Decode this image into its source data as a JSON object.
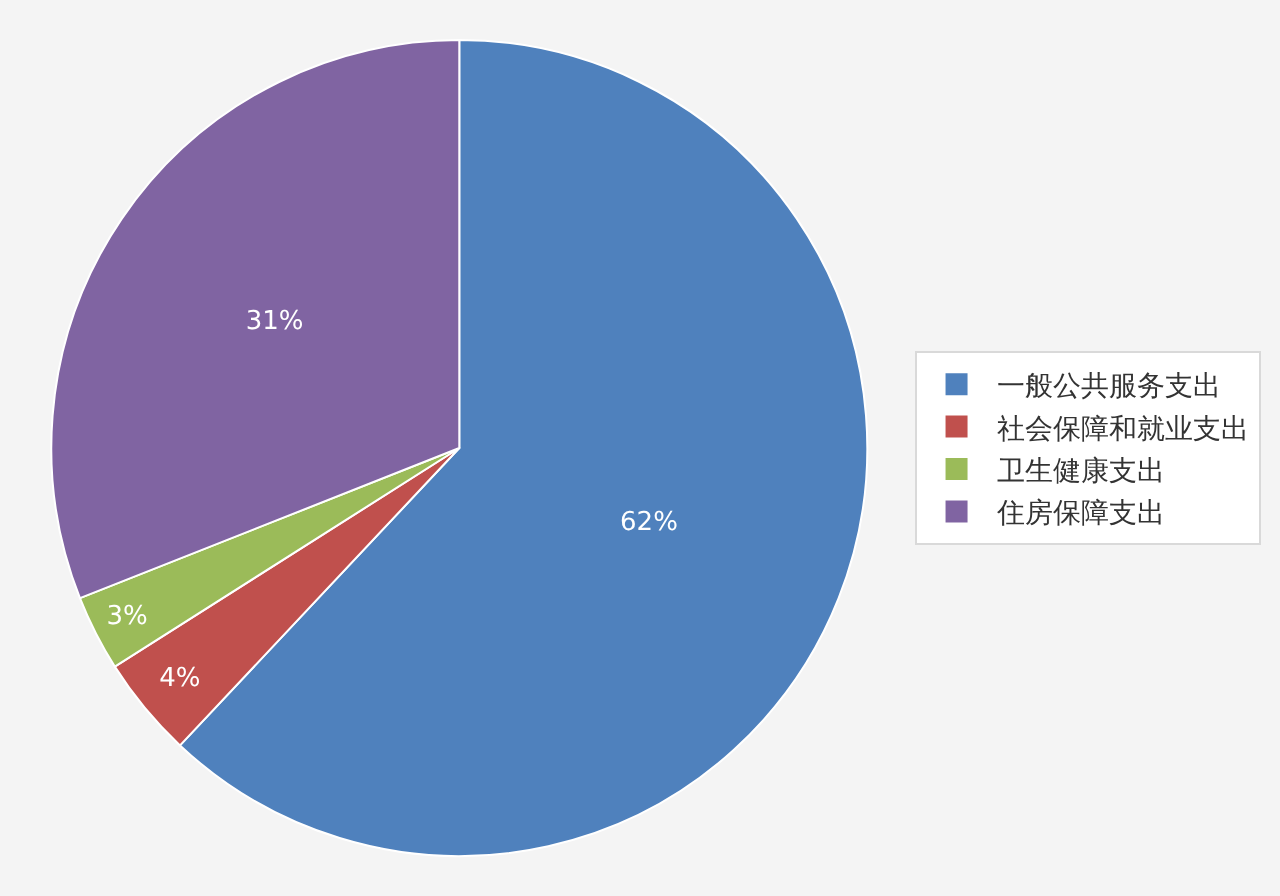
{
  "chart_data": {
    "type": "pie",
    "categories": [
      "一般公共服务支出",
      "社会保障和就业支出",
      "卫生健康支出",
      "住房保障支出"
    ],
    "values": [
      62,
      4,
      3,
      31
    ],
    "colors": [
      "#4f81bd",
      "#c0504d",
      "#9bbb59",
      "#8064a2"
    ],
    "value_labels": [
      "62%",
      "4%",
      "3%",
      "31%"
    ],
    "legend": "right"
  }
}
